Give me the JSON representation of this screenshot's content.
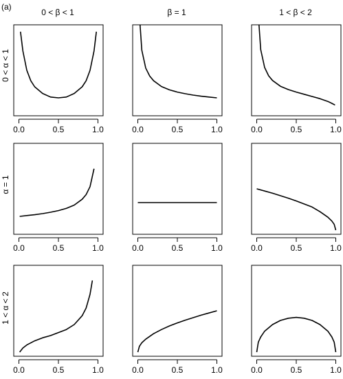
{
  "panel_label": "(a)",
  "col_headers": [
    "0 < β < 1",
    "β = 1",
    "1 < β < 2"
  ],
  "row_headers": [
    "0 < α < 1",
    "α = 1",
    "1 < α < 2"
  ],
  "chart_data": {
    "type": "line",
    "title": "",
    "layout": "3x3 grid of small multiples",
    "grid": false,
    "x_ticks": [
      0.0,
      0.5,
      1.0
    ],
    "x_tick_labels": [
      "0.0",
      "0.5",
      "1.0"
    ],
    "xlim": [
      0,
      1
    ],
    "panels": [
      {
        "row": 0,
        "col": 0,
        "series": [
          {
            "x": [
              0.02,
              0.05,
              0.1,
              0.15,
              0.2,
              0.3,
              0.4,
              0.5,
              0.6,
              0.7,
              0.8,
              0.85,
              0.9,
              0.95,
              0.98
            ],
            "y": [
              2.9,
              2.2,
              1.5,
              1.12,
              0.9,
              0.66,
              0.53,
              0.5,
              0.53,
              0.66,
              0.9,
              1.12,
              1.5,
              2.2,
              2.9
            ]
          }
        ]
      },
      {
        "row": 0,
        "col": 1,
        "series": [
          {
            "x": [
              0.02,
              0.05,
              0.1,
              0.15,
              0.2,
              0.3,
              0.4,
              0.5,
              0.6,
              0.7,
              0.8,
              0.9,
              1.0
            ],
            "y": [
              3.5,
              2.23,
              1.58,
              1.29,
              1.12,
              0.91,
              0.79,
              0.71,
              0.65,
              0.6,
              0.56,
              0.53,
              0.5
            ]
          }
        ]
      },
      {
        "row": 0,
        "col": 2,
        "series": [
          {
            "x": [
              0.02,
              0.05,
              0.1,
              0.15,
              0.2,
              0.3,
              0.4,
              0.5,
              0.6,
              0.7,
              0.8,
              0.9,
              0.95,
              0.99
            ],
            "y": [
              3.5,
              2.25,
              1.6,
              1.3,
              1.13,
              0.92,
              0.8,
              0.71,
              0.63,
              0.55,
              0.47,
              0.37,
              0.3,
              0.24
            ]
          }
        ]
      },
      {
        "row": 1,
        "col": 0,
        "series": [
          {
            "x": [
              0.01,
              0.1,
              0.2,
              0.3,
              0.4,
              0.5,
              0.6,
              0.7,
              0.8,
              0.85,
              0.9,
              0.95
            ],
            "y": [
              0.5,
              0.53,
              0.56,
              0.6,
              0.65,
              0.71,
              0.79,
              0.91,
              1.12,
              1.29,
              1.58,
              2.23
            ]
          }
        ]
      },
      {
        "row": 1,
        "col": 1,
        "series": [
          {
            "x": [
              0.0,
              1.0
            ],
            "y": [
              1.0,
              1.0
            ]
          }
        ]
      },
      {
        "row": 1,
        "col": 2,
        "series": [
          {
            "x": [
              0.0,
              0.1,
              0.2,
              0.3,
              0.4,
              0.5,
              0.6,
              0.7,
              0.8,
              0.9,
              0.95,
              0.98,
              1.0
            ],
            "y": [
              1.5,
              1.42,
              1.34,
              1.25,
              1.16,
              1.06,
              0.95,
              0.84,
              0.67,
              0.47,
              0.33,
              0.21,
              0.0
            ]
          }
        ]
      },
      {
        "row": 2,
        "col": 0,
        "series": [
          {
            "x": [
              0.01,
              0.05,
              0.1,
              0.2,
              0.3,
              0.4,
              0.5,
              0.6,
              0.7,
              0.8,
              0.85,
              0.9,
              0.93
            ],
            "y": [
              0.0,
              0.15,
              0.26,
              0.41,
              0.52,
              0.6,
              0.71,
              0.82,
              1.0,
              1.32,
              1.6,
              2.1,
              2.6
            ]
          }
        ]
      },
      {
        "row": 2,
        "col": 1,
        "series": [
          {
            "x": [
              0.0,
              0.02,
              0.05,
              0.1,
              0.2,
              0.3,
              0.4,
              0.5,
              0.6,
              0.7,
              0.8,
              0.9,
              1.0
            ],
            "y": [
              0.0,
              0.21,
              0.34,
              0.47,
              0.67,
              0.82,
              0.95,
              1.06,
              1.16,
              1.25,
              1.34,
              1.42,
              1.5
            ]
          }
        ]
      },
      {
        "row": 2,
        "col": 2,
        "series": [
          {
            "x": [
              0.0,
              0.02,
              0.05,
              0.1,
              0.2,
              0.3,
              0.4,
              0.5,
              0.6,
              0.7,
              0.8,
              0.9,
              0.95,
              0.98,
              1.0
            ],
            "y": [
              0.0,
              0.36,
              0.55,
              0.76,
              1.0,
              1.15,
              1.23,
              1.26,
              1.23,
              1.15,
              1.0,
              0.76,
              0.55,
              0.36,
              0.0
            ]
          }
        ]
      }
    ]
  }
}
